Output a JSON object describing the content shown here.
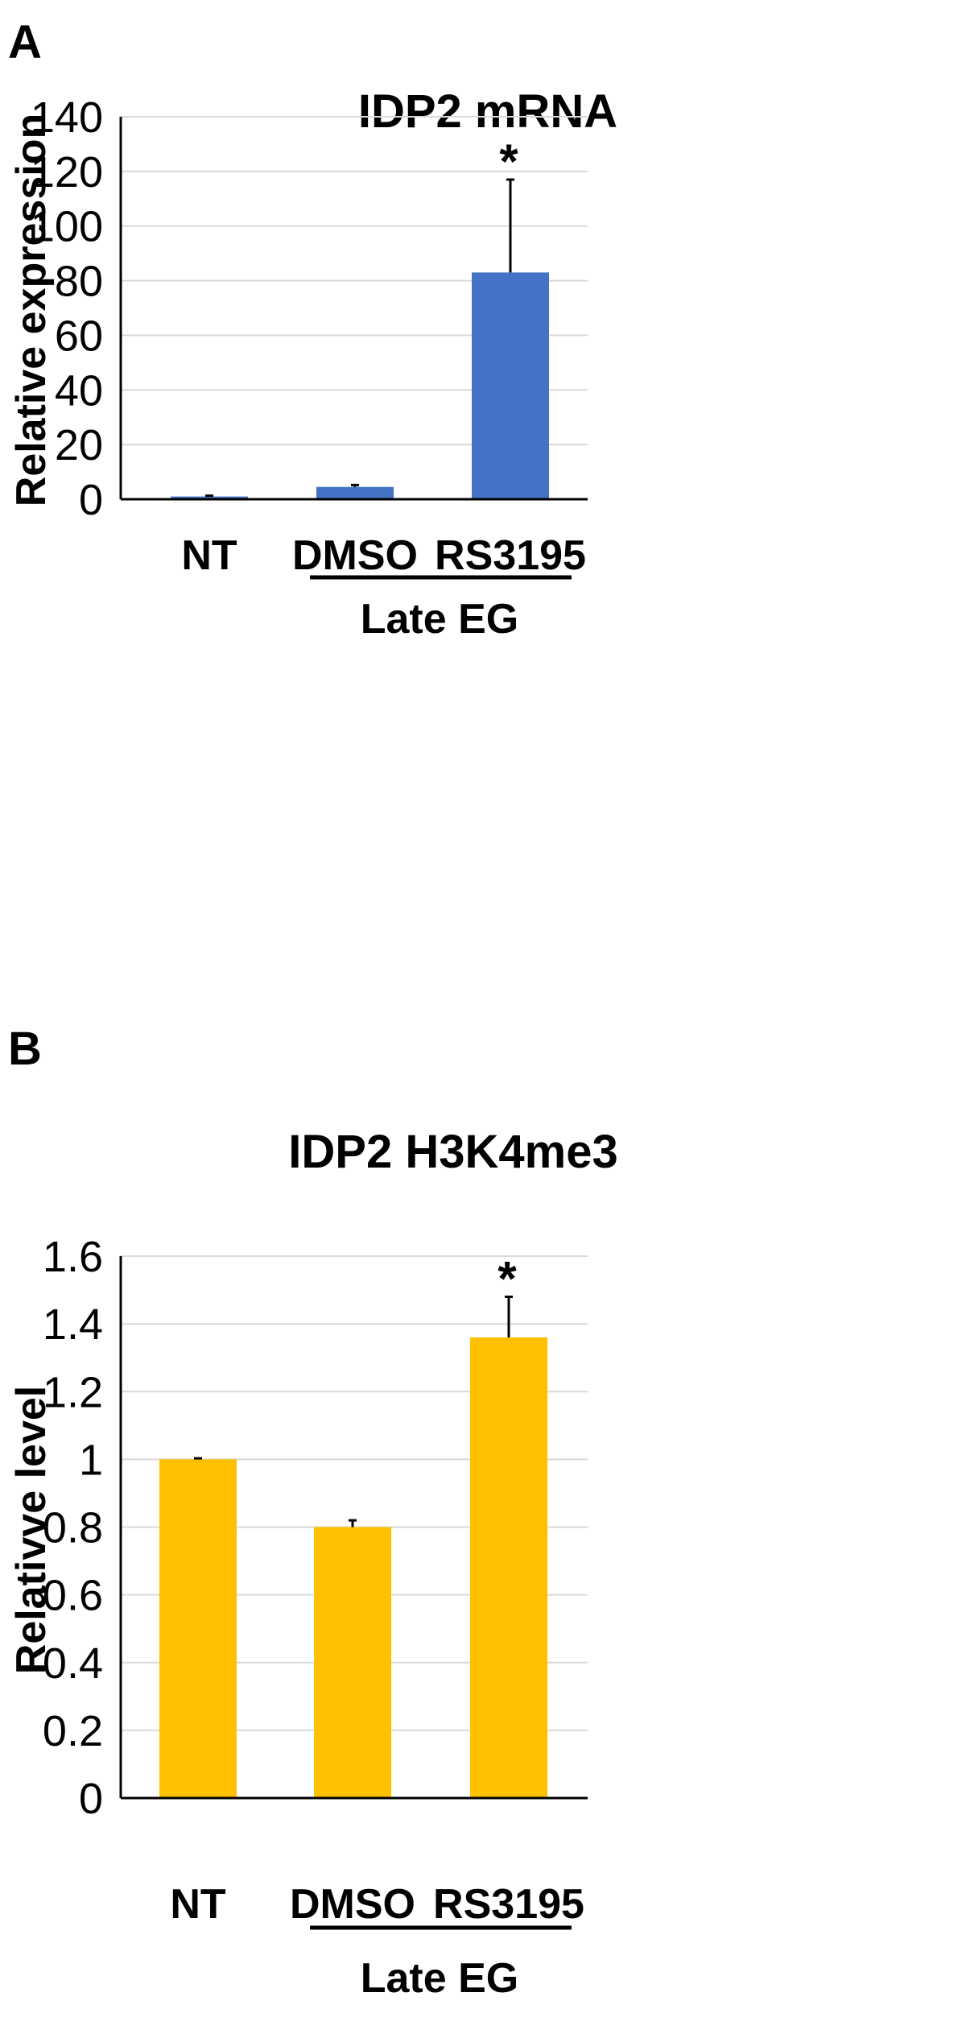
{
  "chart_data": [
    {
      "panel": "A",
      "type": "bar",
      "title": "IDP2 mRNA",
      "xlabel": "",
      "ylabel": "Relative expression",
      "ylim": [
        0,
        140
      ],
      "yticks": [
        0,
        20,
        40,
        60,
        80,
        100,
        120,
        140
      ],
      "categories": [
        "NT",
        "DMSO",
        "RS3195"
      ],
      "values": [
        1,
        4.5,
        83
      ],
      "errors": [
        0.3,
        0.7,
        34
      ],
      "significance": [
        "",
        "",
        "*"
      ],
      "bar_color": "#4472C4",
      "grid": true,
      "group": {
        "label": "Late EG",
        "categories": [
          "DMSO",
          "RS3195"
        ]
      }
    },
    {
      "panel": "B",
      "type": "bar",
      "title": "IDP2 H3K4me3",
      "xlabel": "",
      "ylabel": "Relativve level",
      "ylim": [
        0,
        1.6
      ],
      "yticks": [
        "0",
        "0.2",
        "0.4",
        "0.6",
        "0.8",
        "1",
        "1.2",
        "1.4",
        "1.6"
      ],
      "categories": [
        "NT",
        "DMSO",
        "RS3195"
      ],
      "values": [
        1.0,
        0.8,
        1.36
      ],
      "errors": [
        0.003,
        0.02,
        0.12
      ],
      "significance": [
        "",
        "",
        "*"
      ],
      "bar_color": "#FFC000",
      "grid": true,
      "group": {
        "label": "Late EG",
        "categories": [
          "DMSO",
          "RS3195"
        ]
      }
    }
  ]
}
